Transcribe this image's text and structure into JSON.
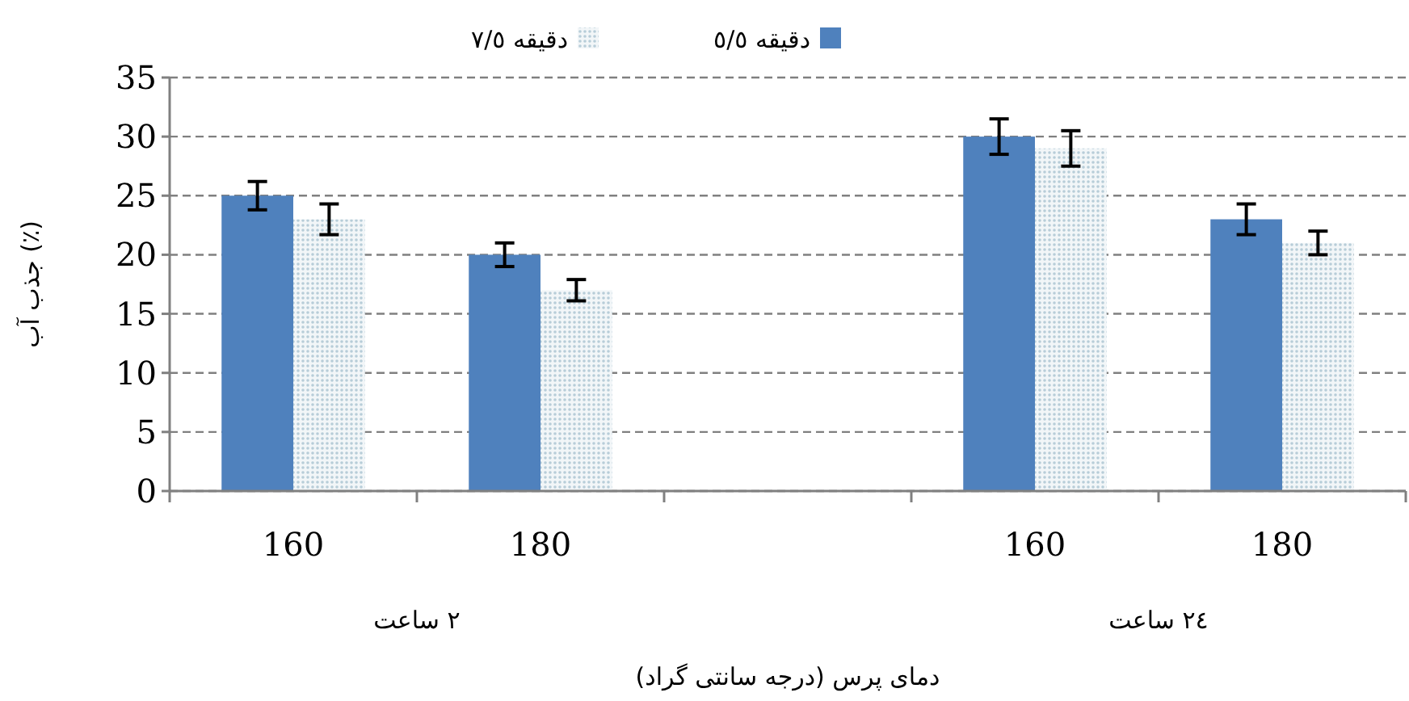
{
  "chart_data": {
    "type": "bar",
    "xlabel": "دمای پرس (درجه سانتی گراد)",
    "ylabel": "جذب آب (٪)",
    "categories": [
      "160",
      "180",
      null,
      "160",
      "180"
    ],
    "series": [
      {
        "name": "دقيقه ٥/٥",
        "color": "#4f81bd",
        "values": [
          25,
          20,
          null,
          30,
          23
        ],
        "errors": [
          1.2,
          1,
          null,
          1.5,
          1.3
        ]
      },
      {
        "name": "دقيقه ٧/٥",
        "color": "#b7cdd8",
        "values": [
          23,
          17,
          null,
          29,
          21
        ],
        "errors": [
          1.3,
          0.9,
          null,
          1.5,
          1
        ]
      }
    ],
    "ylim": [
      0,
      35
    ],
    "yticks": [
      0,
      5,
      10,
      15,
      20,
      25,
      30,
      35
    ],
    "grid": "y",
    "legend": "top",
    "annotations": [
      "٢ ساعت",
      "٢٤ ساعت"
    ]
  }
}
